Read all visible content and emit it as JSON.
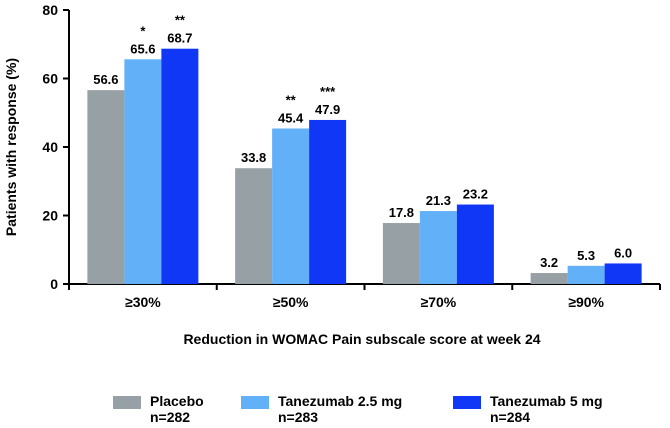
{
  "chart_data": {
    "type": "bar",
    "title": "",
    "ylabel": "Patients with response (%)",
    "xlabel": "Reduction in WOMAC Pain subscale score at week 24",
    "ylim": [
      0,
      80
    ],
    "yticks": [
      0,
      20,
      40,
      60,
      80
    ],
    "categories": [
      "≥30%",
      "≥50%",
      "≥70%",
      "≥90%"
    ],
    "series": [
      {
        "name": "Placebo",
        "n_label": "n=282",
        "color": "#97a0a5",
        "values": [
          56.6,
          33.8,
          17.8,
          3.2
        ],
        "labels": [
          "56.6",
          "33.8",
          "17.8",
          "3.2"
        ],
        "significance": [
          "",
          "",
          "",
          ""
        ]
      },
      {
        "name": "Tanezumab 2.5 mg",
        "n_label": "n=283",
        "color": "#62b1f8",
        "values": [
          65.6,
          45.4,
          21.3,
          5.3
        ],
        "labels": [
          "65.6",
          "45.4",
          "21.3",
          "5.3"
        ],
        "significance": [
          "*",
          "**",
          "",
          ""
        ]
      },
      {
        "name": "Tanezumab 5 mg",
        "n_label": "n=284",
        "color": "#0f37f5",
        "values": [
          68.7,
          47.9,
          23.2,
          6.0
        ],
        "labels": [
          "68.7",
          "47.9",
          "23.2",
          "6.0"
        ],
        "significance": [
          "**",
          "***",
          "",
          ""
        ]
      }
    ],
    "legend_position": "bottom"
  }
}
